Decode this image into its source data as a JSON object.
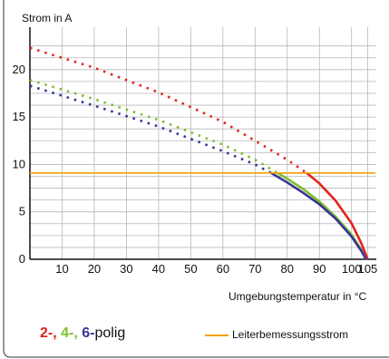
{
  "chart_data": {
    "type": "line",
    "ylabel": "Strom in A",
    "xlabel": "Umgebungstemperatur in °C",
    "xlim": [
      0,
      106
    ],
    "ylim": [
      0,
      24
    ],
    "xticks": [
      10,
      20,
      30,
      40,
      50,
      60,
      70,
      80,
      90,
      100,
      105
    ],
    "yticks": [
      0,
      5,
      10,
      15,
      20
    ],
    "grid": true,
    "series": [
      {
        "name": "2-polig",
        "color": "#e2231a",
        "dotted_points": [
          [
            0,
            22.3
          ],
          [
            20,
            20.2
          ],
          [
            40,
            17.6
          ],
          [
            60,
            14.5
          ],
          [
            80,
            10.5
          ],
          [
            86,
            9.1
          ]
        ],
        "solid_points": [
          [
            86,
            9.1
          ],
          [
            90,
            8.0
          ],
          [
            95,
            6.2
          ],
          [
            100,
            3.8
          ],
          [
            103,
            1.7
          ],
          [
            105,
            0
          ]
        ]
      },
      {
        "name": "4-polig",
        "color": "#7cbf2e",
        "dotted_points": [
          [
            0,
            18.9
          ],
          [
            20,
            16.9
          ],
          [
            40,
            14.7
          ],
          [
            60,
            12.1
          ],
          [
            70,
            10.5
          ],
          [
            77,
            9.1
          ]
        ],
        "solid_points": [
          [
            77,
            9.1
          ],
          [
            80,
            8.5
          ],
          [
            85,
            7.4
          ],
          [
            90,
            6.1
          ],
          [
            95,
            4.5
          ],
          [
            100,
            2.6
          ],
          [
            103,
            1.0
          ],
          [
            104.5,
            0
          ]
        ]
      },
      {
        "name": "6-polig",
        "color": "#3a3296",
        "dotted_points": [
          [
            0,
            18.3
          ],
          [
            20,
            16.2
          ],
          [
            40,
            14.0
          ],
          [
            60,
            11.4
          ],
          [
            70,
            10.0
          ],
          [
            75,
            9.1
          ]
        ],
        "solid_points": [
          [
            75,
            9.1
          ],
          [
            80,
            8.1
          ],
          [
            85,
            7.0
          ],
          [
            90,
            5.8
          ],
          [
            95,
            4.3
          ],
          [
            100,
            2.4
          ],
          [
            103,
            0.9
          ],
          [
            104.5,
            0
          ]
        ]
      }
    ],
    "reference_line": {
      "name": "Leiterbemessungsstrom",
      "y": 9.1,
      "color": "#f2a100"
    }
  },
  "legend": {
    "prefix2": "2-,",
    "prefix4": "4-,",
    "prefix6": "6-",
    "suffix": "polig",
    "reference": "Leiterbemessungsstrom"
  }
}
